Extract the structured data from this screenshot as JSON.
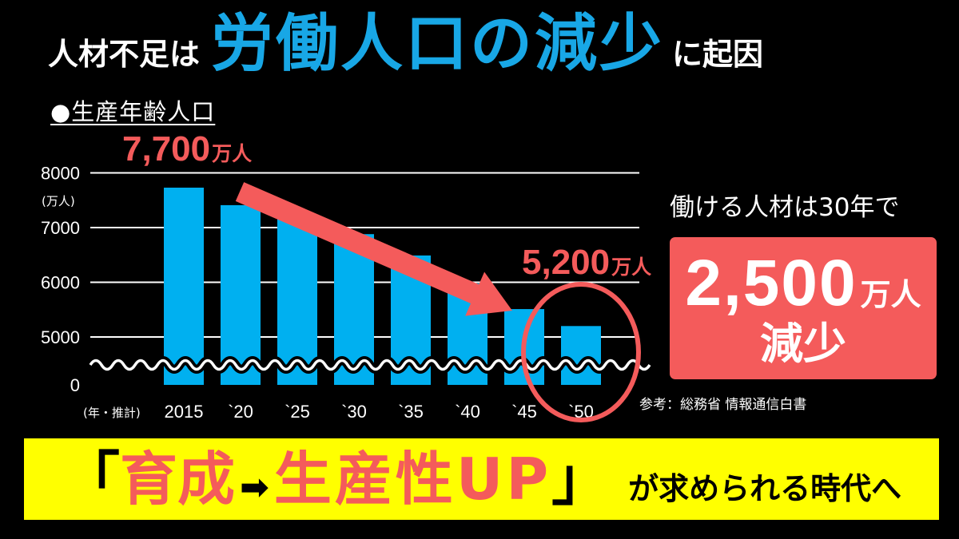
{
  "headline": {
    "lead": "人材不足は",
    "emphasis": "労働人口の減少",
    "tail": "に起因"
  },
  "chart_data": {
    "type": "bar",
    "title": "●生産年齢人口",
    "xlabel": "(年・推計)",
    "ylabel": "(万人)",
    "categories": [
      "2015",
      "`20",
      "`25",
      "`30",
      "`35",
      "`40",
      "`45",
      "`50"
    ],
    "values": [
      7730,
      7410,
      7170,
      6880,
      6490,
      5980,
      5510,
      5200
    ],
    "y_ticks": [
      8000,
      7000,
      6000,
      5000,
      0
    ],
    "ylim": [
      0,
      8000
    ],
    "axis_break": [
      0,
      5000
    ],
    "grid": true,
    "annotations": [
      {
        "value": "7,700",
        "unit": "万人"
      },
      {
        "value": "5,200",
        "unit": "万人"
      }
    ]
  },
  "summary_panel": {
    "lead": "働ける人材は30年で",
    "value": "2,500",
    "unit": "万人",
    "label": "減少"
  },
  "source_note": "参考：総務省 情報通信白書",
  "banner": {
    "open_bracket": "「",
    "first_term": "育成",
    "arrow": "➡",
    "second_term": "生産性UP",
    "close_bracket": "」",
    "tail": "が求められる時代へ"
  },
  "colors": {
    "background": "#000000",
    "headline_accent": "#18a7e6",
    "bar": "#00b0f0",
    "alert": "#f45b5b",
    "banner": "#ffff00",
    "text": "#ffffff"
  }
}
